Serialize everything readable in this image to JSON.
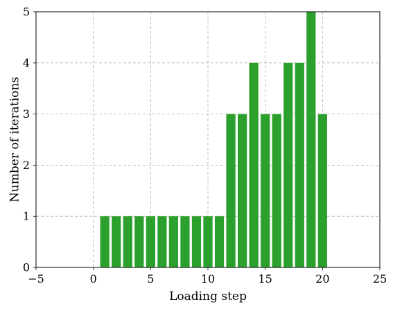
{
  "chart_data": {
    "type": "bar",
    "title": "",
    "xlabel": "Loading step",
    "ylabel": "Number of iterations",
    "xlim": [
      -5,
      25
    ],
    "ylim": [
      0,
      5
    ],
    "xticks": [
      -5,
      0,
      5,
      10,
      15,
      20,
      25
    ],
    "yticks": [
      0,
      1,
      2,
      3,
      4,
      5
    ],
    "xtick_labels": [
      "−5",
      "0",
      "5",
      "10",
      "15",
      "20",
      "25"
    ],
    "ytick_labels": [
      "0",
      "1",
      "2",
      "3",
      "4",
      "5"
    ],
    "grid": true,
    "bar_color": "#2ca02c",
    "grid_color": "#b0b0b0",
    "categories": [
      1,
      2,
      3,
      4,
      5,
      6,
      7,
      8,
      9,
      10,
      11,
      12,
      13,
      14,
      15,
      16,
      17,
      18,
      19,
      20
    ],
    "values": [
      1,
      1,
      1,
      1,
      1,
      1,
      1,
      1,
      1,
      1,
      1,
      3,
      3,
      4,
      3,
      3,
      4,
      4,
      5,
      3
    ]
  }
}
